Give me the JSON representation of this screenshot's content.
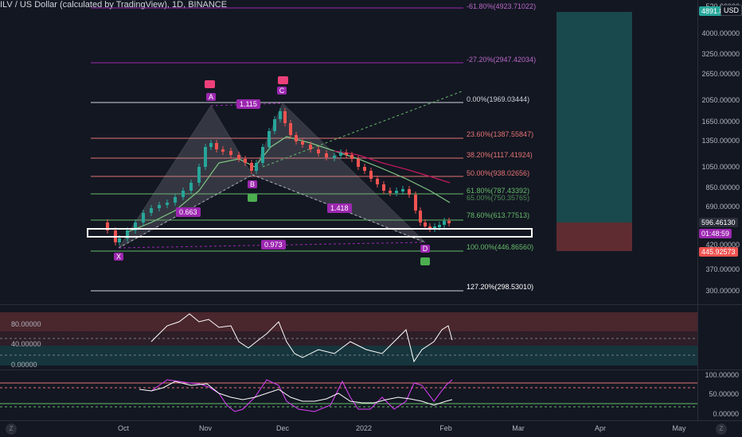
{
  "header": {
    "title": "ILV / US Dollar (calculated by TradingView), 1D, BINANCE",
    "currency": "USD"
  },
  "colors": {
    "bg": "#131722",
    "up": "#26a69a",
    "down": "#ef5350",
    "pattern": "#9c27b0",
    "fib_red": "#e57373",
    "fib_green": "#66bb6a"
  },
  "price_axis": {
    "labels": [
      "4000.00000",
      "3250.00000",
      "2650.00000",
      "2050.00000",
      "1650.00000",
      "1350.00000",
      "1050.00000",
      "850.00000",
      "690.00000",
      "370.00000",
      "300.00000"
    ],
    "top_partial": "5?0.00000",
    "current_price": "596.46130",
    "countdown": "01:48:59",
    "target_tag": "4891.83578",
    "stop_tag": "445.92573",
    "mid_partial": "420.00000"
  },
  "fib_levels": [
    {
      "label": "-61.80%(4923.71022)"
    },
    {
      "label": "-27.20%(2947.42034)"
    },
    {
      "label": "0.00%(1969.03444)"
    },
    {
      "label": "23.60%(1387.55847)"
    },
    {
      "label": "38.20%(1117.41924)"
    },
    {
      "label": "50.00%(938.02656)"
    },
    {
      "label": "61.80%(787.43392)"
    },
    {
      "label": "65.00%(750.35765)"
    },
    {
      "label": "78.60%(613.77513)"
    },
    {
      "label": "100.00%(446.86560)"
    },
    {
      "label": "127.20%(298.53010)"
    }
  ],
  "pattern": {
    "points": [
      "X",
      "A",
      "B",
      "C",
      "D"
    ],
    "ratios": [
      "1.115",
      "0.663",
      "1.418",
      "0.973"
    ]
  },
  "rsi": {
    "labels": [
      "80.00000",
      "40.00000",
      "0.00000"
    ]
  },
  "stoch": {
    "labels": [
      "100.00000",
      "50.00000",
      "0.00000"
    ]
  },
  "time_axis": {
    "labels": [
      "Oct",
      "Nov",
      "Dec",
      "2022",
      "Feb",
      "Mar",
      "Apr",
      "May"
    ]
  },
  "footer": {
    "left_icon": "Z",
    "right_icon": "Z"
  }
}
